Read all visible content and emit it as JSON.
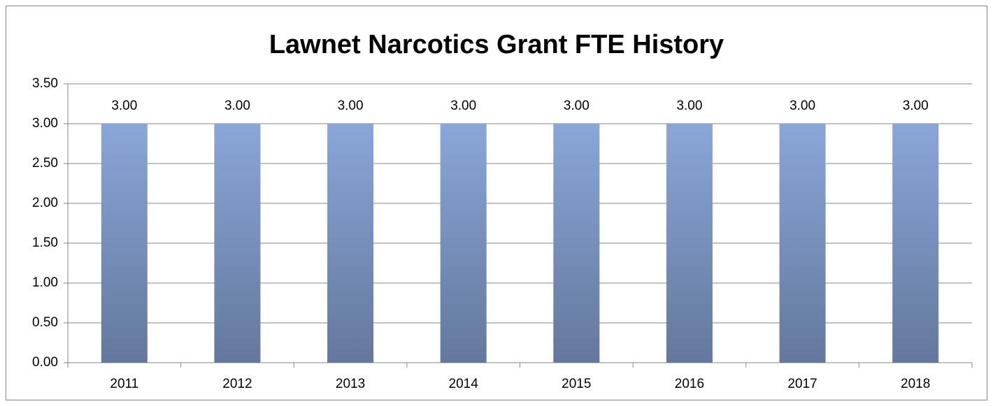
{
  "chart_data": {
    "type": "bar",
    "title": "Lawnet Narcotics Grant FTE History",
    "categories": [
      "2011",
      "2012",
      "2013",
      "2014",
      "2015",
      "2016",
      "2017",
      "2018"
    ],
    "values": [
      3,
      3,
      3,
      3,
      3,
      3,
      3,
      3
    ],
    "value_labels": [
      "3.00",
      "3.00",
      "3.00",
      "3.00",
      "3.00",
      "3.00",
      "3.00",
      "3.00"
    ],
    "color": "#8aa6d8",
    "ylim": [
      0,
      3.5
    ],
    "yticks": [
      {
        "value": 0,
        "label": "0.00"
      },
      {
        "value": 0.5,
        "label": "0.50"
      },
      {
        "value": 1,
        "label": "1.00"
      },
      {
        "value": 1.5,
        "label": "1.50"
      },
      {
        "value": 2,
        "label": "2.00"
      },
      {
        "value": 2.5,
        "label": "2.50"
      },
      {
        "value": 3,
        "label": "3.00"
      },
      {
        "value": 3.5,
        "label": "3.50"
      }
    ],
    "grid": true
  }
}
